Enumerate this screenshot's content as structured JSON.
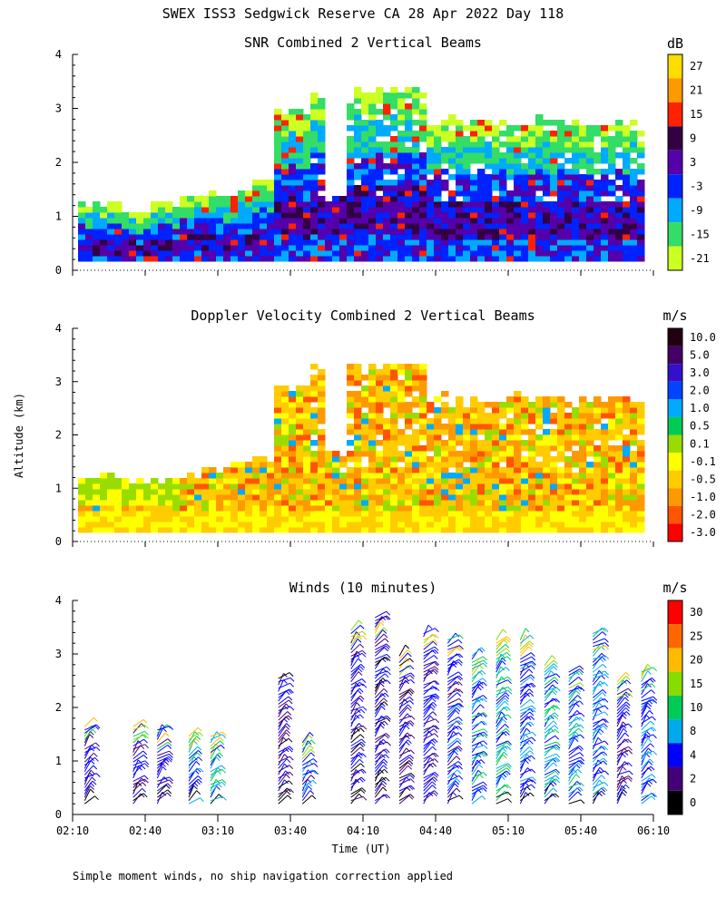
{
  "title": "SWEX ISS3 Sedgwick Reserve CA  28 Apr 2022 Day 118",
  "footnote": "Simple moment winds, no ship navigation correction applied",
  "chart_data": [
    {
      "type": "heatmap",
      "title": "SNR Combined 2 Vertical Beams",
      "colorbar_unit": "dB",
      "colorbar_labels": [
        "27",
        "21",
        "15",
        "9",
        "3",
        "-3",
        "-9",
        "-15",
        "-21"
      ],
      "colorbar_colors": [
        "#ffdd00",
        "#ff9900",
        "#ff2200",
        "#330044",
        "#5500aa",
        "#0022ff",
        "#00aaff",
        "#33dd66",
        "#ccff22"
      ],
      "ylim": [
        0,
        4
      ],
      "yticks": [
        "0",
        "1",
        "2",
        "3",
        "4"
      ],
      "x_range": [
        "02:10",
        "06:10"
      ]
    },
    {
      "type": "heatmap",
      "title": "Doppler Velocity Combined 2 Vertical Beams",
      "colorbar_unit": "m/s",
      "colorbar_labels": [
        "10.0",
        "5.0",
        "3.0",
        "2.0",
        "1.0",
        "0.5",
        "0.1",
        "-0.1",
        "-0.5",
        "-1.0",
        "-2.0",
        "-3.0"
      ],
      "colorbar_colors": [
        "#220011",
        "#440066",
        "#3311cc",
        "#0044ff",
        "#00aaff",
        "#00cc55",
        "#99dd00",
        "#ffff00",
        "#ffcc00",
        "#ff9900",
        "#ff5500",
        "#ff0000"
      ],
      "ylim": [
        0,
        4
      ],
      "yticks": [
        "0",
        "1",
        "2",
        "3",
        "4"
      ],
      "ylabel": "Altitude (km)"
    },
    {
      "type": "scatter",
      "title": "Winds (10 minutes)",
      "colorbar_unit": "m/s",
      "colorbar_labels": [
        "30",
        "25",
        "20",
        "15",
        "10",
        "8",
        "4",
        "2",
        "0"
      ],
      "colorbar_colors": [
        "#ff0000",
        "#ff6600",
        "#ffbb00",
        "#88dd00",
        "#00cc55",
        "#00aaee",
        "#0000ff",
        "#440077",
        "#000000"
      ],
      "ylim": [
        0,
        4
      ],
      "yticks": [
        "0",
        "1",
        "2",
        "3",
        "4"
      ],
      "xticks": [
        "02:10",
        "02:40",
        "03:10",
        "03:40",
        "04:10",
        "04:40",
        "05:10",
        "05:40",
        "06:10"
      ],
      "xlabel": "Time (UT)",
      "profiles": [
        {
          "time": "02:15",
          "top": 1.7,
          "speed": 5
        },
        {
          "time": "02:35",
          "top": 1.7,
          "speed": 5
        },
        {
          "time": "02:45",
          "top": 1.6,
          "speed": 5
        },
        {
          "time": "02:58",
          "top": 1.5,
          "speed": 8
        },
        {
          "time": "03:07",
          "top": 1.5,
          "speed": 10
        },
        {
          "time": "03:35",
          "top": 2.6,
          "speed": 4
        },
        {
          "time": "03:45",
          "top": 1.4,
          "speed": 6
        },
        {
          "time": "04:05",
          "top": 3.5,
          "speed": 4
        },
        {
          "time": "04:15",
          "top": 3.7,
          "speed": 4
        },
        {
          "time": "04:25",
          "top": 3.0,
          "speed": 4
        },
        {
          "time": "04:35",
          "top": 3.4,
          "speed": 5
        },
        {
          "time": "04:45",
          "top": 3.3,
          "speed": 6
        },
        {
          "time": "04:55",
          "top": 3.0,
          "speed": 8
        },
        {
          "time": "05:05",
          "top": 3.3,
          "speed": 9
        },
        {
          "time": "05:15",
          "top": 3.3,
          "speed": 7
        },
        {
          "time": "05:25",
          "top": 2.8,
          "speed": 9
        },
        {
          "time": "05:35",
          "top": 2.7,
          "speed": 8
        },
        {
          "time": "05:45",
          "top": 3.4,
          "speed": 7
        },
        {
          "time": "05:55",
          "top": 2.5,
          "speed": 5
        },
        {
          "time": "06:05",
          "top": 2.7,
          "speed": 7
        }
      ]
    }
  ]
}
